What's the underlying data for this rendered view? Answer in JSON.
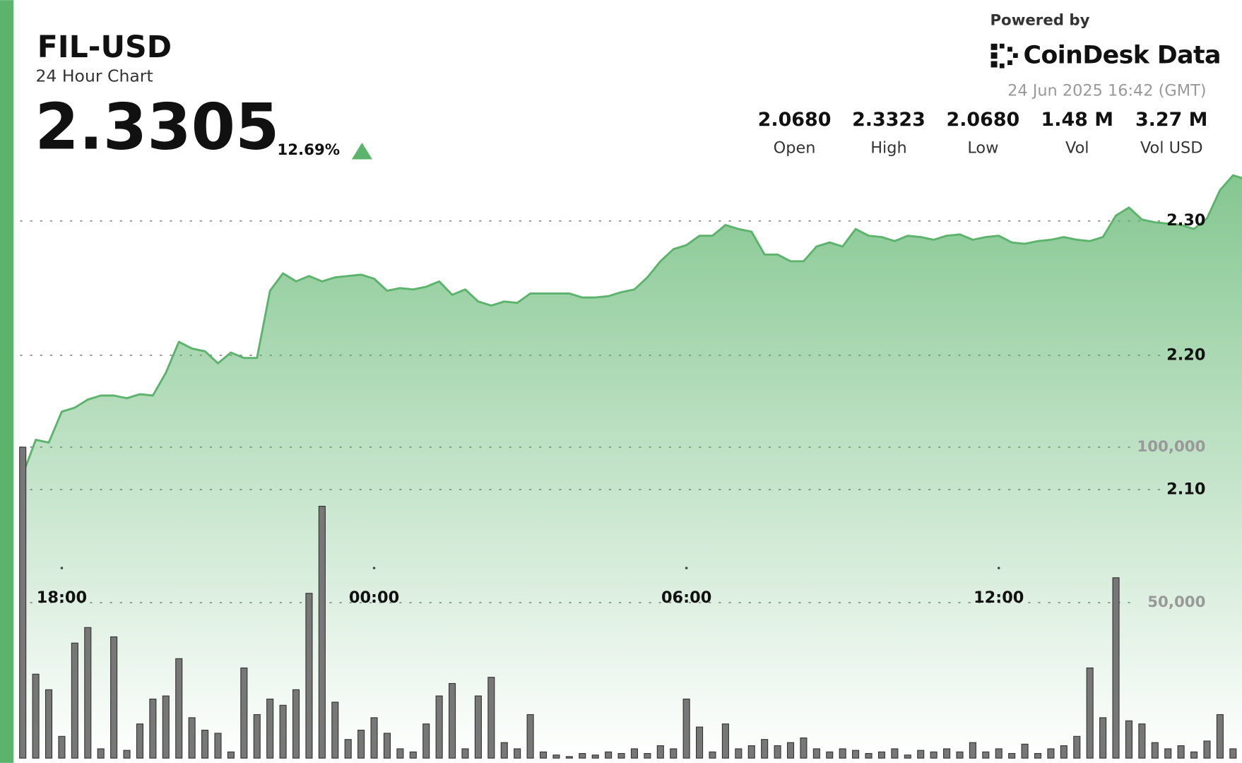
{
  "header": {
    "symbol": "FIL-USD",
    "subtitle": "24 Hour Chart",
    "price": "2.3305",
    "change": "12.69%"
  },
  "branding": {
    "powered_by": "Powered by",
    "name": "CoinDesk Data",
    "timestamp": "24 Jun 2025 16:42 (GMT)"
  },
  "stats": [
    {
      "value": "2.0680",
      "label": "Open"
    },
    {
      "value": "2.3323",
      "label": "High"
    },
    {
      "value": "2.0680",
      "label": "Low"
    },
    {
      "value": "1.48 M",
      "label": "Vol"
    },
    {
      "value": "3.27 M",
      "label": "Vol USD"
    }
  ],
  "chart_data": {
    "type": "line",
    "categories": [
      null,
      null,
      null,
      "18:00",
      null,
      null,
      null,
      null,
      null,
      null,
      null,
      null,
      null,
      null,
      null,
      null,
      null,
      null,
      null,
      null,
      null,
      null,
      null,
      null,
      null,
      null,
      null,
      "00:00",
      null,
      null,
      null,
      null,
      null,
      null,
      null,
      null,
      null,
      null,
      null,
      null,
      null,
      null,
      null,
      null,
      null,
      null,
      null,
      null,
      null,
      null,
      null,
      "06:00",
      null,
      null,
      null,
      null,
      null,
      null,
      null,
      null,
      null,
      null,
      null,
      null,
      null,
      null,
      null,
      null,
      null,
      null,
      null,
      null,
      null,
      null,
      null,
      "12:00",
      null,
      null,
      null,
      null,
      null,
      null,
      null,
      null,
      null,
      null,
      null,
      null,
      null,
      null,
      null,
      null,
      null,
      null,
      null
    ],
    "series": [
      {
        "color": "#5cb46c",
        "values": [
          2.111,
          2.137,
          2.135,
          2.158,
          2.161,
          2.167,
          2.17,
          2.17,
          2.168,
          2.171,
          2.17,
          2.187,
          2.21,
          2.205,
          2.203,
          2.194,
          2.202,
          2.198,
          2.198,
          2.248,
          2.261,
          2.255,
          2.259,
          2.255,
          2.258,
          2.259,
          2.26,
          2.257,
          2.248,
          2.25,
          2.249,
          2.251,
          2.255,
          2.245,
          2.249,
          2.24,
          2.237,
          2.24,
          2.239,
          2.246,
          2.246,
          2.246,
          2.246,
          2.243,
          2.243,
          2.244,
          2.247,
          2.249,
          2.258,
          2.27,
          2.279,
          2.282,
          2.289,
          2.289,
          2.297,
          2.294,
          2.292,
          2.275,
          2.275,
          2.27,
          2.27,
          2.281,
          2.284,
          2.281,
          2.294,
          2.289,
          2.288,
          2.285,
          2.289,
          2.288,
          2.286,
          2.289,
          2.29,
          2.286,
          2.288,
          2.289,
          2.284,
          2.283,
          2.285,
          2.286,
          2.288,
          2.286,
          2.285,
          2.288,
          2.304,
          2.31,
          2.301,
          2.299,
          2.298,
          2.297,
          2.294,
          2.302,
          2.323,
          2.334,
          2.331
        ]
      },
      {
        "type": "bar",
        "axis": "y2",
        "color": "#777777",
        "values": [
          100000,
          27000,
          22000,
          7000,
          37000,
          42000,
          3000,
          39000,
          2500,
          11000,
          19000,
          20000,
          32000,
          13000,
          9000,
          8000,
          2000,
          29000,
          14000,
          19000,
          17000,
          22000,
          53000,
          81000,
          18000,
          6000,
          9000,
          13000,
          8000,
          3000,
          2000,
          11000,
          20000,
          24000,
          3000,
          20000,
          26000,
          5000,
          3000,
          14000,
          2000,
          1000,
          500,
          1500,
          1000,
          2000,
          1500,
          3000,
          1500,
          4000,
          3000,
          19000,
          10000,
          2000,
          11000,
          3000,
          4000,
          6000,
          4000,
          5000,
          6500,
          3000,
          2000,
          3000,
          2500,
          1500,
          2000,
          3000,
          1000,
          2500,
          2000,
          3000,
          2000,
          5000,
          2000,
          3000,
          1500,
          4500,
          1500,
          3000,
          4000,
          7000,
          29000,
          13000,
          58000,
          12000,
          11000,
          5000,
          3000,
          4000,
          2000,
          5500,
          14000,
          3000,
          2000
        ]
      }
    ],
    "ylim": [
      1.9,
      2.34
    ],
    "yticks": [
      {
        "value": 2.1,
        "label": "2.10"
      },
      {
        "value": 2.2,
        "label": "2.20"
      },
      {
        "value": 2.3,
        "label": "2.30"
      }
    ],
    "y2lim": [
      0,
      190000
    ],
    "y2ticks": [
      {
        "value": 50000,
        "label": "50,000"
      },
      {
        "value": 100000,
        "label": "100,000"
      }
    ],
    "grid": true
  }
}
